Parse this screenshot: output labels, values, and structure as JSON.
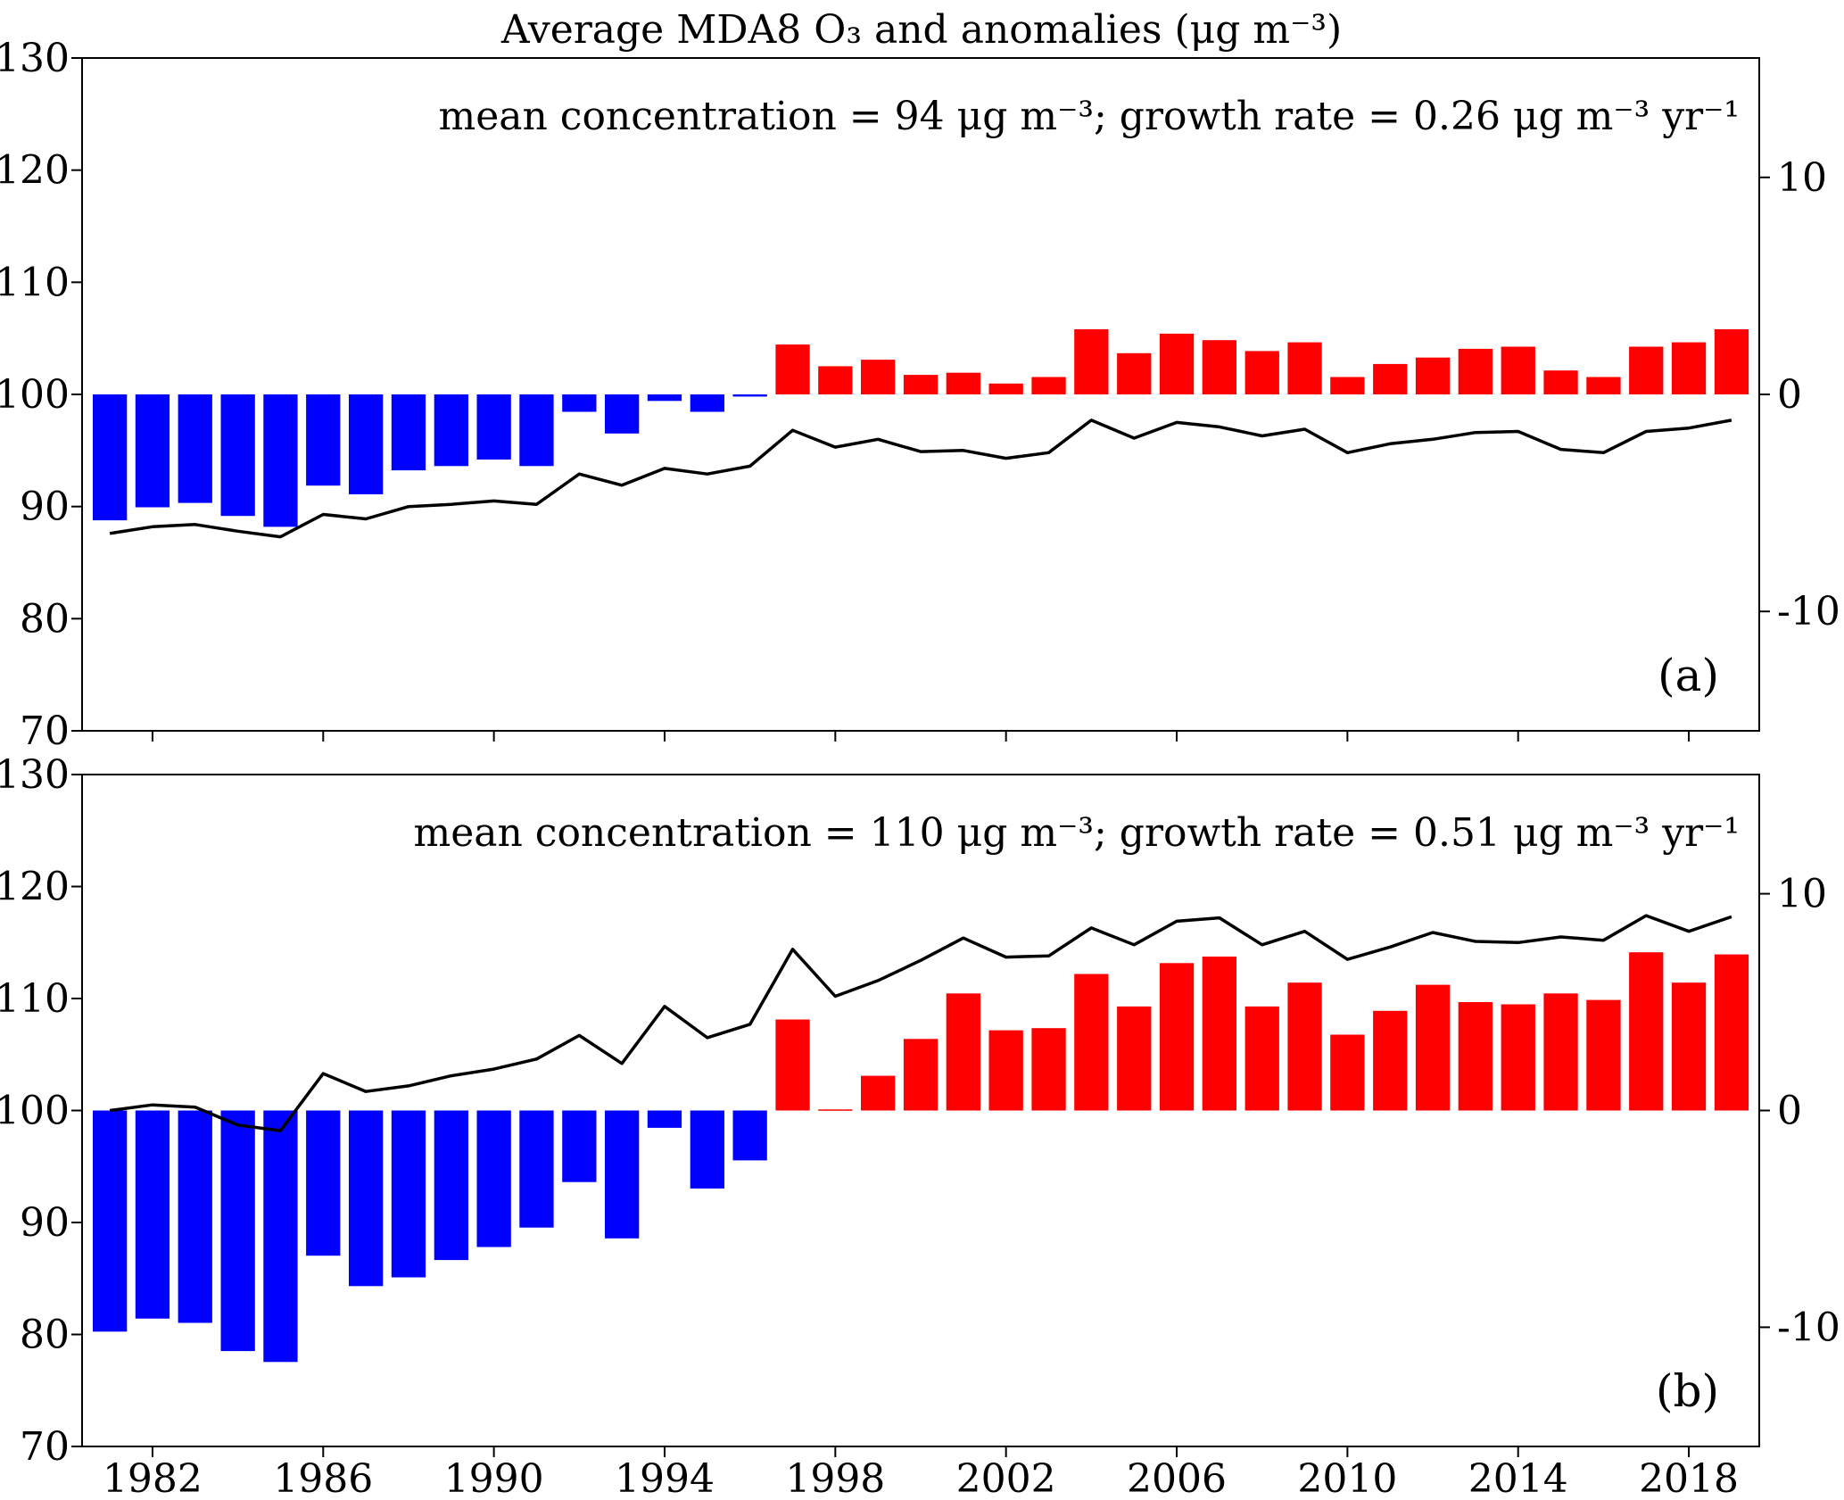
{
  "chart_data": {
    "title": "Average MDA8 O₃ and anomalies (μg m⁻³)",
    "type": "bar+line",
    "colors": {
      "positive": "#ff0000",
      "negative": "#0000ff",
      "line": "#000000"
    },
    "x_ticks": [
      "1982",
      "1986",
      "1990",
      "1994",
      "1998",
      "2002",
      "2006",
      "2010",
      "2014",
      "2018"
    ],
    "years": [
      1981,
      1982,
      1983,
      1984,
      1985,
      1986,
      1987,
      1988,
      1989,
      1990,
      1991,
      1992,
      1993,
      1994,
      1995,
      1996,
      1997,
      1998,
      1999,
      2000,
      2001,
      2002,
      2003,
      2004,
      2005,
      2006,
      2007,
      2008,
      2009,
      2010,
      2011,
      2012,
      2013,
      2014,
      2015,
      2016,
      2017,
      2018,
      2019
    ],
    "panels": [
      {
        "label": "(a)",
        "annotation": "mean concentration = 94 μg m⁻³;  growth rate = 0.26 μg m⁻³ yr⁻¹",
        "left_axis": {
          "range": [
            70,
            130
          ],
          "ticks": [
            "70",
            "80",
            "90",
            "100",
            "110",
            "120",
            "130"
          ]
        },
        "right_axis": {
          "range": [
            -15.5,
            15.5
          ],
          "ticks": [
            "10",
            "0",
            "-10"
          ]
        },
        "series": [
          {
            "type": "line",
            "axis": "left",
            "values": [
              87.6,
              88.2,
              88.4,
              87.8,
              87.3,
              89.3,
              88.9,
              90.0,
              90.2,
              90.5,
              90.2,
              92.9,
              91.9,
              93.4,
              92.9,
              93.6,
              96.8,
              95.3,
              96.0,
              94.9,
              95.0,
              94.3,
              94.8,
              97.7,
              96.1,
              97.5,
              97.1,
              96.3,
              96.9,
              94.8,
              95.6,
              96.0,
              96.6,
              96.7,
              95.1,
              94.8,
              96.7,
              97.0,
              97.7
            ]
          },
          {
            "type": "bar",
            "axis": "right",
            "values": [
              -5.8,
              -5.2,
              -5.0,
              -5.6,
              -6.1,
              -4.2,
              -4.6,
              -3.5,
              -3.3,
              -3.0,
              -3.3,
              -0.8,
              -1.8,
              -0.3,
              -0.8,
              -0.1,
              2.3,
              1.3,
              1.6,
              0.9,
              1.0,
              0.5,
              0.8,
              3.0,
              1.9,
              2.8,
              2.5,
              2.0,
              2.4,
              0.8,
              1.4,
              1.7,
              2.1,
              2.2,
              1.1,
              0.8,
              2.2,
              2.4,
              3.0
            ]
          }
        ]
      },
      {
        "label": "(b)",
        "annotation": "mean concentration = 110 μg m⁻³;  growth rate = 0.51 μg m⁻³ yr⁻¹",
        "left_axis": {
          "range": [
            70,
            130
          ],
          "ticks": [
            "70",
            "80",
            "90",
            "100",
            "110",
            "120",
            "130"
          ]
        },
        "right_axis": {
          "range": [
            -15.5,
            15.5
          ],
          "ticks": [
            "10",
            "0",
            "-10"
          ]
        },
        "series": [
          {
            "type": "line",
            "axis": "left",
            "values": [
              100.0,
              100.5,
              100.3,
              98.7,
              98.2,
              103.3,
              101.7,
              102.2,
              103.1,
              103.7,
              104.6,
              106.7,
              104.2,
              109.3,
              106.5,
              107.7,
              114.4,
              110.2,
              111.6,
              113.4,
              115.4,
              113.7,
              113.8,
              116.3,
              114.8,
              116.9,
              117.2,
              114.8,
              116.0,
              113.5,
              114.6,
              115.9,
              115.1,
              115.0,
              115.5,
              115.2,
              117.4,
              116.0,
              117.3
            ]
          },
          {
            "type": "bar",
            "axis": "right",
            "values": [
              -10.2,
              -9.6,
              -9.8,
              -11.1,
              -11.6,
              -6.7,
              -8.1,
              -7.7,
              -6.9,
              -6.3,
              -5.4,
              -3.3,
              -5.9,
              -0.8,
              -3.6,
              -2.3,
              4.2,
              0.05,
              1.6,
              3.3,
              5.4,
              3.7,
              3.8,
              6.3,
              4.8,
              6.8,
              7.1,
              4.8,
              5.9,
              3.5,
              4.6,
              5.8,
              5.0,
              4.9,
              5.4,
              5.1,
              7.3,
              5.9,
              7.2
            ]
          }
        ]
      }
    ]
  }
}
